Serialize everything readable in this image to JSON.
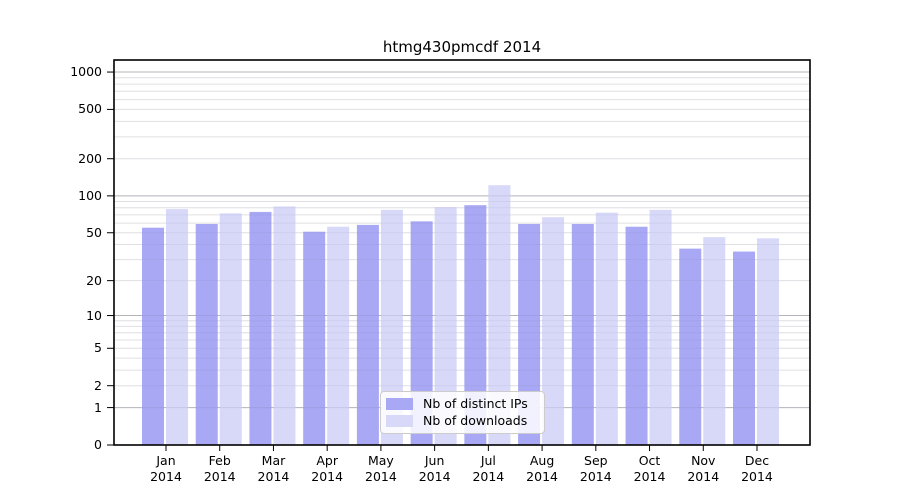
{
  "chart_data": {
    "type": "bar",
    "title": "htmg430pmcdf 2014",
    "months": [
      "Jan",
      "Feb",
      "Mar",
      "Apr",
      "May",
      "Jun",
      "Jul",
      "Aug",
      "Sep",
      "Oct",
      "Nov",
      "Dec"
    ],
    "year": "2014",
    "yticks": [
      0,
      1,
      2,
      5,
      10,
      20,
      50,
      100,
      200,
      500,
      1000
    ],
    "yscale": "log(1+value)",
    "ylim": [
      0,
      1300
    ],
    "grid": "on",
    "legend_position": "bottom-center-inside",
    "series": [
      {
        "name": "Nb of distinct IPs",
        "color": "#a8a8f4",
        "values": [
          55,
          59,
          74,
          51,
          58,
          62,
          84,
          59,
          59,
          56,
          37,
          35
        ]
      },
      {
        "name": "Nb of downloads",
        "color": "#d8d8f8",
        "values": [
          78,
          72,
          82,
          56,
          77,
          81,
          122,
          67,
          73,
          77,
          46,
          45
        ]
      }
    ]
  }
}
